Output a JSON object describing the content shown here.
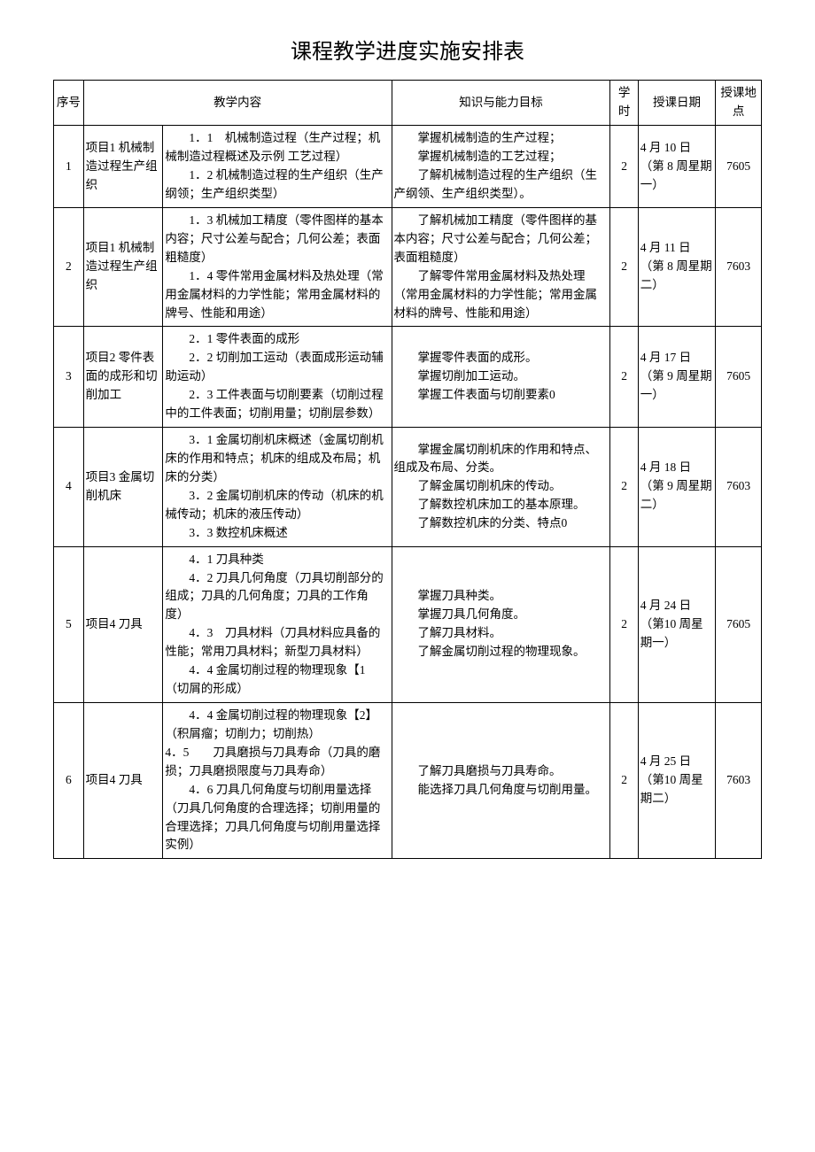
{
  "title": "课程教学进度实施安排表",
  "columns": {
    "seq": "序号",
    "content": "教学内容",
    "goal": "知识与能力目标",
    "hours": "学时",
    "date": "授课日期",
    "location": "授课地点"
  },
  "rows": [
    {
      "seq": "1",
      "project": "项目1 机械制造过程生产组织",
      "content": "　　1．1　机械制造过程（生产过程；机械制造过程概述及示例 工艺过程）\n　　1．2 机械制造过程的生产组织（生产纲领；生产组织类型）",
      "goal": "　　掌握机械制造的生产过程；\n　　掌握机械制造的工艺过程；\n　　了解机械制造过程的生产组织（生产纲领、生产组织类型）。",
      "hours": "2",
      "date": "4 月 10 日（第 8 周星期一）",
      "location": "7605"
    },
    {
      "seq": "2",
      "project": "项目1 机械制造过程生产组织",
      "content": "　　1．3 机械加工精度（零件图样的基本内容；尺寸公差与配合；几何公差；表面粗糙度）\n　　1．4 零件常用金属材料及热处理（常用金属材料的力学性能；常用金属材料的牌号、性能和用途）",
      "goal": "　　了解机械加工精度（零件图样的基本内容；尺寸公差与配合；几何公差；表面粗糙度）\n　　了解零件常用金属材料及热处理（常用金属材料的力学性能；常用金属材料的牌号、性能和用途）",
      "hours": "2",
      "date": "4 月 11 日（第 8 周星期二）",
      "location": "7603"
    },
    {
      "seq": "3",
      "project": "项目2 零件表面的成形和切削加工",
      "content": "　　2．1 零件表面的成形\n　　2．2 切削加工运动（表面成形运动辅助运动）\n　　2．3 工件表面与切削要素（切削过程中的工件表面；切削用量；切削层参数）",
      "goal": "　　掌握零件表面的成形。\n　　掌握切削加工运动。\n　　掌握工件表面与切削要素0",
      "hours": "2",
      "date": "4 月 17 日（第 9 周星期一）",
      "location": "7605"
    },
    {
      "seq": "4",
      "project": "项目3 金属切削机床",
      "content": "　　3．1 金属切削机床概述（金属切削机床的作用和特点；机床的组成及布局；机床的分类）\n　　3．2 金属切削机床的传动（机床的机械传动；机床的液压传动）\n　　3．3 数控机床概述",
      "goal": "　　掌握金属切削机床的作用和特点、组成及布局、分类。\n　　了解金属切削机床的传动。\n　　了解数控机床加工的基本原理。\n　　了解数控机床的分类、特点0",
      "hours": "2",
      "date": "4 月 18 日（第 9 周星期二）",
      "location": "7603"
    },
    {
      "seq": "5",
      "project": "项目4 刀具",
      "content": "　　4．1 刀具种类\n　　4．2 刀具几何角度（刀具切削部分的组成；刀具的几何角度；刀具的工作角度）\n　　4．3　刀具材料（刀具材料应具备的性能；常用刀具材料；新型刀具材料）\n　　4．4 金属切削过程的物理现象【1（切屑的形成）",
      "goal": "　　掌握刀具种类。\n　　掌握刀具几何角度。\n　　了解刀具材料。\n　　了解金属切削过程的物理现象。",
      "hours": "2",
      "date": "4 月 24 日（第10 周星期一）",
      "location": "7605"
    },
    {
      "seq": "6",
      "project": "项目4 刀具",
      "content": "　　4．4 金属切削过程的物理现象【2】（积屑瘤；切削力；切削热）\n4．5　　刀具磨损与刀具寿命（刀具的磨损；刀具磨损限度与刀具寿命）\n　　4．6 刀具几何角度与切削用量选择（刀具几何角度的合理选择；切削用量的合理选择；刀具几何角度与切削用量选择实例）",
      "goal": "　　了解刀具磨损与刀具寿命。\n　　能选择刀具几何角度与切削用量。",
      "hours": "2",
      "date": "4 月 25 日（第10 周星期二）",
      "location": "7603"
    }
  ]
}
